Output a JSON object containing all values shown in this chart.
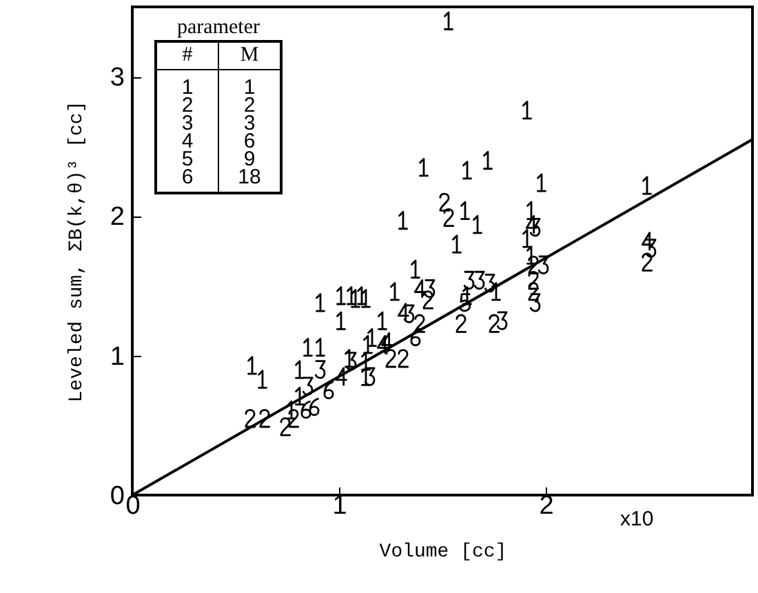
{
  "chart_data": {
    "type": "scatter",
    "xlabel": "Volume [cc]",
    "ylabel": "Leveled sum, ΣB(k,θ)³ [cc]",
    "legend_title": "parameter",
    "legend": "top left",
    "grid": false,
    "xlim": [
      0,
      3
    ],
    "xticks": [
      0,
      1,
      2
    ],
    "ylim": [
      0,
      3.5
    ],
    "yticks": [
      0,
      1,
      2,
      3
    ],
    "annotations": [
      "x10",
      "#",
      "M",
      "1",
      "2",
      "3",
      "6",
      "9",
      "18"
    ],
    "series": [
      {
        "name": "1",
        "color": "#000000",
        "x": [
          1.53,
          1.91,
          1.41,
          1.62,
          1.72,
          1.98,
          2.49,
          1.31,
          1.61,
          1.67,
          1.57,
          1.93,
          1.91,
          1.93,
          1.76,
          1.62,
          1.37,
          1.27,
          1.08,
          1.13,
          1.21,
          1.16,
          1.13,
          0.58,
          0.63,
          0.77,
          0.81,
          0.91,
          1.01,
          1.06,
          1.11,
          1.01,
          0.85,
          0.91,
          0.81,
          1.05,
          1.13,
          1.14
        ],
        "values": [
          3.4,
          2.76,
          2.35,
          2.33,
          2.4,
          2.24,
          2.22,
          1.97,
          2.04,
          1.94,
          1.8,
          2.04,
          1.84,
          1.72,
          1.46,
          1.43,
          1.62,
          1.46,
          1.41,
          1.41,
          1.25,
          1.13,
          0.85,
          0.93,
          0.83,
          0.61,
          0.71,
          1.38,
          1.43,
          1.43,
          1.43,
          1.25,
          1.06,
          1.06,
          0.9,
          0.98,
          0.96,
          1.08
        ]
      },
      {
        "name": "2",
        "color": "#000000",
        "x": [
          1.51,
          1.53,
          2.49,
          1.94,
          1.94,
          1.94,
          1.59,
          1.75,
          1.43,
          1.39,
          1.25,
          1.31,
          0.57,
          0.64,
          0.74,
          0.78
        ],
        "values": [
          2.1,
          1.99,
          1.67,
          1.65,
          1.54,
          1.46,
          1.23,
          1.23,
          1.4,
          1.23,
          0.98,
          0.98,
          0.55,
          0.55,
          0.49,
          0.55
        ]
      },
      {
        "name": "3",
        "color": "#000000",
        "x": [
          1.95,
          2.51,
          1.99,
          1.95,
          1.63,
          1.68,
          1.73,
          1.79,
          1.44,
          1.34,
          0.85,
          0.91,
          1.06,
          1.15
        ],
        "values": [
          1.92,
          1.77,
          1.65,
          1.38,
          1.54,
          1.54,
          1.52,
          1.25,
          1.48,
          1.3,
          0.78,
          0.9,
          0.96,
          0.85
        ]
      },
      {
        "name": "4",
        "color": "#000000",
        "x": [
          1.93,
          2.49,
          1.39,
          1.31,
          1.23,
          1.01,
          1.21
        ],
        "values": [
          1.94,
          1.82,
          1.48,
          1.31,
          1.1,
          0.85,
          1.08
        ]
      },
      {
        "name": "5",
        "color": "#000000",
        "x": [
          1.61
        ],
        "values": [
          1.38
        ]
      },
      {
        "name": "6",
        "color": "#000000",
        "x": [
          1.37,
          0.84,
          0.88,
          0.95
        ],
        "values": [
          1.13,
          0.61,
          0.63,
          0.75
        ]
      },
      {
        "type": "line",
        "color": "#000000",
        "x": [
          0,
          3
        ],
        "values": [
          0,
          2.55
        ]
      }
    ]
  }
}
